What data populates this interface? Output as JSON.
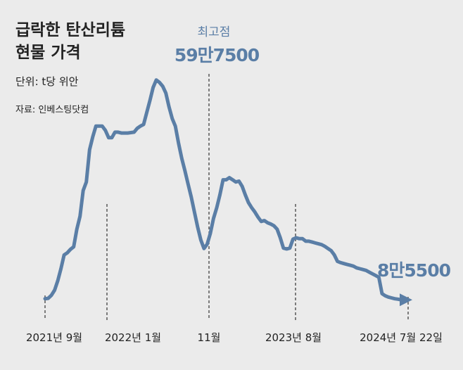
{
  "title_lines": [
    "급락한 탄산리튬",
    "현물 가격"
  ],
  "unit": "단위: t당 위안",
  "source": "자료: 인베스팅닷컴",
  "colors": {
    "line": "#5a7ea6",
    "background": "#ebebeb",
    "text": "#222222",
    "guide": "#333333"
  },
  "chart_data": {
    "type": "line",
    "x_ticks": [
      "2021년 9월",
      "2022년 1월",
      "11월",
      "2023년 8월",
      "2024년 7월 22일"
    ],
    "ylim": [
      40000,
      620000
    ],
    "grid": false,
    "legend": "none",
    "annotations": [
      {
        "label": "최고점",
        "value_text": "59만7500",
        "point_index": 49
      },
      {
        "value_text": "8만5500",
        "point_index": 112
      }
    ],
    "series": [
      {
        "x": [
          "2021-09",
          "2021-09",
          "2021-10",
          "2021-10",
          "2021-11",
          "2021-11",
          "2021-11",
          "2021-12",
          "2021-12",
          "2021-12",
          "2022-01",
          "2022-01",
          "2022-01",
          "2022-02",
          "2022-02",
          "2022-02",
          "2022-03",
          "2022-03",
          "2022-03",
          "2022-04",
          "2022-04",
          "2022-04",
          "2022-05",
          "2022-05",
          "2022-05",
          "2022-05",
          "2022-06",
          "2022-06",
          "2022-06",
          "2022-06",
          "2022-07",
          "2022-07",
          "2022-07",
          "2022-08",
          "2022-08",
          "2022-08",
          "2022-08",
          "2022-09",
          "2022-09",
          "2022-09",
          "2022-09",
          "2022-10",
          "2022-10",
          "2022-10",
          "2022-10",
          "2022-11",
          "2022-11",
          "2022-11",
          "2022-11",
          "2022-11",
          "2022-11",
          "2022-11",
          "2022-12",
          "2022-12",
          "2022-12",
          "2022-12",
          "2023-01",
          "2023-01",
          "2023-01",
          "2023-01",
          "2023-02",
          "2023-02",
          "2023-03",
          "2023-03",
          "2023-03",
          "2023-04",
          "2023-04",
          "2023-04",
          "2023-05",
          "2023-05",
          "2023-05",
          "2023-06",
          "2023-06",
          "2023-06",
          "2023-07",
          "2023-07",
          "2023-07",
          "2023-08",
          "2023-08",
          "2023-08",
          "2023-09",
          "2023-09",
          "2023-09",
          "2023-10",
          "2023-10",
          "2023-10",
          "2023-11",
          "2023-11",
          "2023-11",
          "2023-12",
          "2023-12",
          "2023-12",
          "2024-01",
          "2024-01",
          "2024-01",
          "2024-02",
          "2024-02",
          "2024-02",
          "2024-03",
          "2024-03",
          "2024-03",
          "2024-04",
          "2024-04",
          "2024-04",
          "2024-05",
          "2024-05",
          "2024-05",
          "2024-06",
          "2024-06",
          "2024-06",
          "2024-07",
          "2024-07",
          "2024-07-22"
        ],
        "values": [
          88000,
          89000,
          96000,
          108000,
          130000,
          158000,
          190000,
          195000,
          203000,
          209000,
          250000,
          280000,
          340000,
          360000,
          435000,
          465000,
          490000,
          490000,
          490000,
          480000,
          463000,
          463000,
          476000,
          476000,
          474000,
          474000,
          474000,
          475000,
          476000,
          485000,
          490000,
          494000,
          522000,
          550000,
          580000,
          597500,
          592000,
          583000,
          567000,
          535000,
          508000,
          490000,
          450000,
          415000,
          386000,
          355000,
          325000,
          290000,
          255000,
          225000,
          205000,
          215000,
          240000,
          275000,
          300000,
          330000,
          365000,
          365000,
          370000,
          365000,
          360000,
          362000,
          350000,
          330000,
          312000,
          300000,
          290000,
          278000,
          268000,
          270000,
          265000,
          262000,
          258000,
          250000,
          230000,
          206000,
          204000,
          206000,
          227000,
          230000,
          228000,
          228000,
          222000,
          222000,
          220000,
          218000,
          216000,
          214000,
          210000,
          205000,
          200000,
          190000,
          175000,
          172000,
          170000,
          168000,
          166000,
          164000,
          160000,
          158000,
          156000,
          154000,
          150000,
          146000,
          142000,
          138000,
          100000,
          95000,
          92000,
          90000,
          88000,
          87000,
          85500
        ]
      }
    ]
  }
}
